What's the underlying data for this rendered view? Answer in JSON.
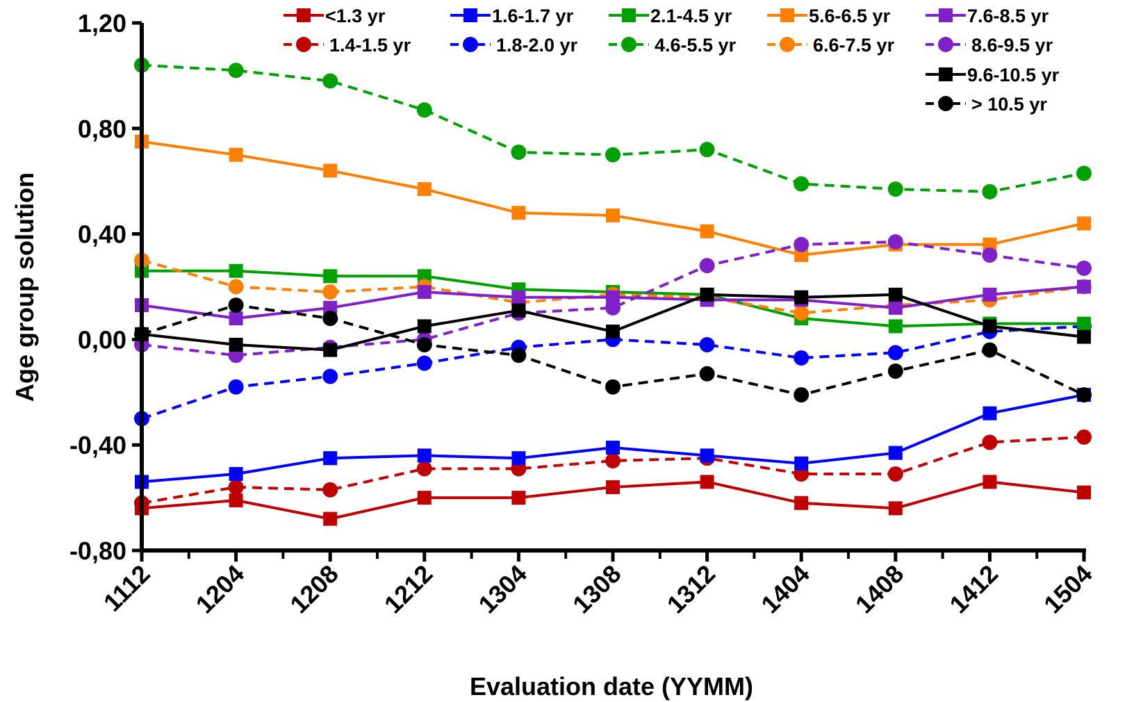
{
  "chart_data": {
    "type": "line",
    "xlabel": "Evaluation date (YYMM)",
    "ylabel": "Age group solution",
    "x": [
      "1112",
      "1204",
      "1208",
      "1212",
      "1304",
      "1308",
      "1312",
      "1404",
      "1408",
      "1412",
      "1504"
    ],
    "ylim": [
      -0.8,
      1.2
    ],
    "yticks": [
      "-0,80",
      "-0,40",
      "0,00",
      "0,40",
      "0,80",
      "1,20"
    ],
    "legend_position": "top",
    "grid": false,
    "series": [
      {
        "name": "<1.3 yr",
        "color": "#C00000",
        "dash": false,
        "marker": "square",
        "values": [
          -0.64,
          -0.61,
          -0.68,
          -0.6,
          -0.6,
          -0.56,
          -0.54,
          -0.62,
          -0.64,
          -0.54,
          -0.58
        ]
      },
      {
        "name": "1.4-1.5 yr",
        "color": "#C00000",
        "dash": true,
        "marker": "circle",
        "values": [
          -0.62,
          -0.56,
          -0.57,
          -0.49,
          -0.49,
          -0.46,
          -0.45,
          -0.51,
          -0.51,
          -0.39,
          -0.37
        ]
      },
      {
        "name": "1.6-1.7 yr",
        "color": "#0000FF",
        "dash": false,
        "marker": "square",
        "values": [
          -0.54,
          -0.51,
          -0.45,
          -0.44,
          -0.45,
          -0.41,
          -0.44,
          -0.47,
          -0.43,
          -0.28,
          -0.21
        ]
      },
      {
        "name": "1.8-2.0 yr",
        "color": "#0000FF",
        "dash": true,
        "marker": "circle",
        "values": [
          -0.3,
          -0.18,
          -0.14,
          -0.09,
          -0.03,
          0.0,
          -0.02,
          -0.07,
          -0.05,
          0.03,
          0.05
        ]
      },
      {
        "name": "2.1-4.5 yr",
        "color": "#00A000",
        "dash": false,
        "marker": "square",
        "values": [
          0.26,
          0.26,
          0.24,
          0.24,
          0.19,
          0.18,
          0.17,
          0.08,
          0.05,
          0.06,
          0.06
        ]
      },
      {
        "name": "4.6-5.5 yr",
        "color": "#00A000",
        "dash": true,
        "marker": "circle",
        "values": [
          1.04,
          1.02,
          0.98,
          0.87,
          0.71,
          0.7,
          0.72,
          0.59,
          0.57,
          0.56,
          0.63
        ]
      },
      {
        "name": "5.6-6.5 yr",
        "color": "#FF8000",
        "dash": false,
        "marker": "square",
        "values": [
          0.75,
          0.7,
          0.64,
          0.57,
          0.48,
          0.47,
          0.41,
          0.32,
          0.36,
          0.36,
          0.44
        ]
      },
      {
        "name": "6.6-7.5 yr",
        "color": "#FF8000",
        "dash": true,
        "marker": "circle",
        "values": [
          0.3,
          0.2,
          0.18,
          0.2,
          0.14,
          0.17,
          0.16,
          0.1,
          0.13,
          0.15,
          0.2
        ]
      },
      {
        "name": "7.6-8.5 yr",
        "color": "#8020C8",
        "dash": false,
        "marker": "square",
        "values": [
          0.13,
          0.08,
          0.12,
          0.18,
          0.16,
          0.16,
          0.15,
          0.15,
          0.12,
          0.17,
          0.2
        ]
      },
      {
        "name": "8.6-9.5 yr",
        "color": "#8020C8",
        "dash": true,
        "marker": "circle",
        "values": [
          -0.02,
          -0.06,
          -0.03,
          0.0,
          0.1,
          0.12,
          0.28,
          0.36,
          0.37,
          0.32,
          0.27
        ]
      },
      {
        "name": "9.6-10.5 yr",
        "color": "#000000",
        "dash": false,
        "marker": "square",
        "values": [
          0.02,
          -0.02,
          -0.04,
          0.05,
          0.11,
          0.03,
          0.17,
          0.16,
          0.17,
          0.05,
          0.01
        ]
      },
      {
        "name": "> 10.5 yr",
        "color": "#000000",
        "dash": true,
        "marker": "circle",
        "values": [
          0.02,
          0.13,
          0.08,
          -0.02,
          -0.06,
          -0.18,
          -0.13,
          -0.21,
          -0.12,
          -0.04,
          -0.21
        ]
      }
    ]
  }
}
